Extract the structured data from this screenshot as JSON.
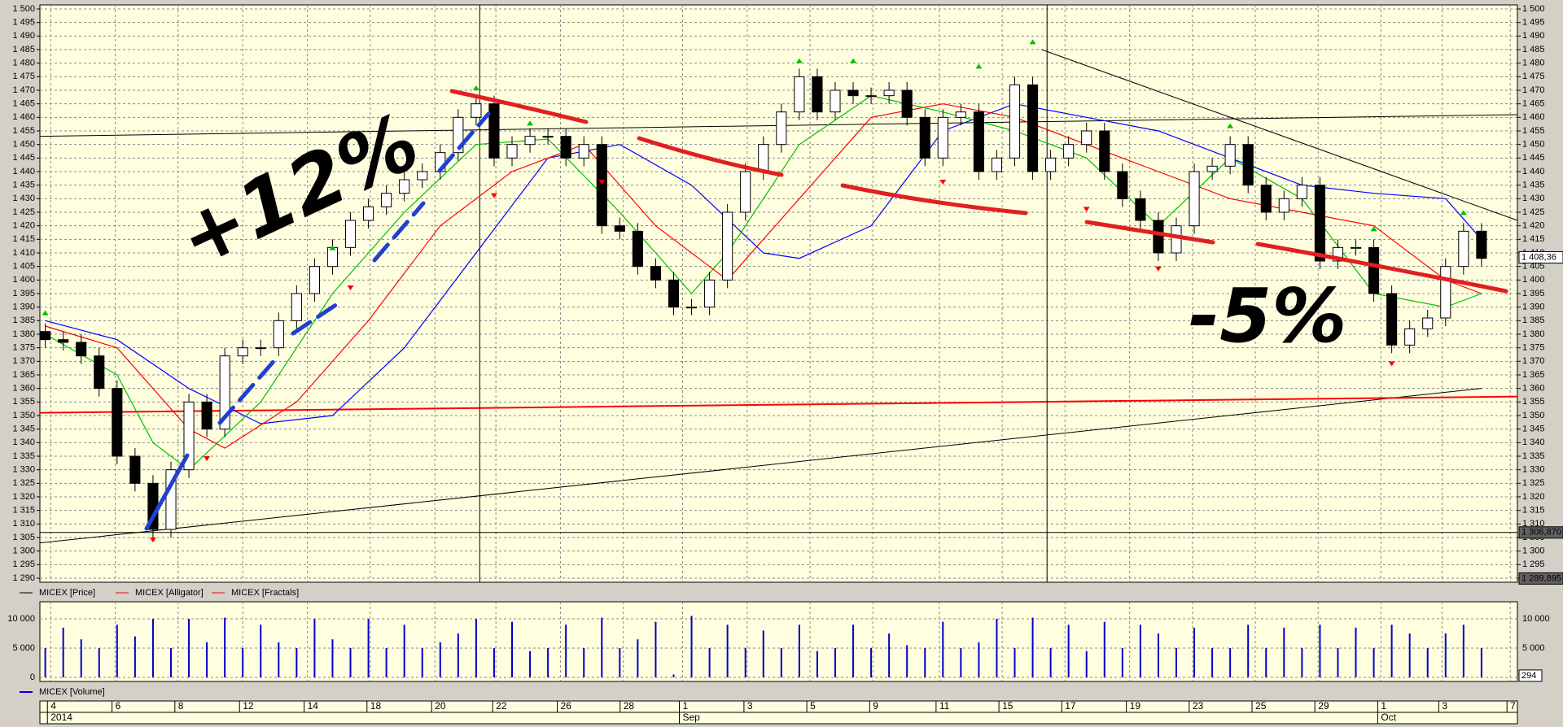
{
  "chart_data": {
    "type": "candlestick",
    "xlim": [
      -0.3,
      82
    ],
    "ylim": [
      1290,
      1500
    ],
    "yticks": [
      {
        "value": 1290,
        "label": "1 290"
      },
      {
        "value": 1295,
        "label": "1 295"
      },
      {
        "value": 1300,
        "label": "1 300"
      },
      {
        "value": 1305,
        "label": "1 305"
      },
      {
        "value": 1310,
        "label": "1 310"
      },
      {
        "value": 1315,
        "label": "1 315"
      },
      {
        "value": 1320,
        "label": "1 320"
      },
      {
        "value": 1325,
        "label": "1 325"
      },
      {
        "value": 1330,
        "label": "1 330"
      },
      {
        "value": 1335,
        "label": "1 335"
      },
      {
        "value": 1340,
        "label": "1 340"
      },
      {
        "value": 1345,
        "label": "1 345"
      },
      {
        "value": 1350,
        "label": "1 350"
      },
      {
        "value": 1355,
        "label": "1 355"
      },
      {
        "value": 1360,
        "label": "1 360"
      },
      {
        "value": 1365,
        "label": "1 365"
      },
      {
        "value": 1370,
        "label": "1 370"
      },
      {
        "value": 1375,
        "label": "1 375"
      },
      {
        "value": 1380,
        "label": "1 380"
      },
      {
        "value": 1385,
        "label": "1 385"
      },
      {
        "value": 1390,
        "label": "1 390"
      },
      {
        "value": 1395,
        "label": "1 395"
      },
      {
        "value": 1400,
        "label": "1 400"
      },
      {
        "value": 1405,
        "label": "1 405"
      },
      {
        "value": 1410,
        "label": "1 410"
      },
      {
        "value": 1415,
        "label": "1 415"
      },
      {
        "value": 1420,
        "label": "1 420"
      },
      {
        "value": 1425,
        "label": "1 425"
      },
      {
        "value": 1430,
        "label": "1 430"
      },
      {
        "value": 1435,
        "label": "1 435"
      },
      {
        "value": 1440,
        "label": "1 440"
      },
      {
        "value": 1445,
        "label": "1 445"
      },
      {
        "value": 1450,
        "label": "1 450"
      },
      {
        "value": 1455,
        "label": "1 455"
      },
      {
        "value": 1460,
        "label": "1 460"
      },
      {
        "value": 1465,
        "label": "1 465"
      },
      {
        "value": 1470,
        "label": "1 470"
      },
      {
        "value": 1475,
        "label": "1 475"
      },
      {
        "value": 1480,
        "label": "1 480"
      },
      {
        "value": 1485,
        "label": "1 485"
      },
      {
        "value": 1490,
        "label": "1 490"
      },
      {
        "value": 1495,
        "label": "1 495"
      },
      {
        "value": 1500,
        "label": "1 500"
      }
    ],
    "xticks": [
      {
        "value": 0.3,
        "label": "4"
      },
      {
        "value": 3.9,
        "label": "6"
      },
      {
        "value": 7.4,
        "label": "8"
      },
      {
        "value": 11,
        "label": "12"
      },
      {
        "value": 14.6,
        "label": "14"
      },
      {
        "value": 18.1,
        "label": "18"
      },
      {
        "value": 21.7,
        "label": "20"
      },
      {
        "value": 25.1,
        "label": "22"
      },
      {
        "value": 28.7,
        "label": "26"
      },
      {
        "value": 32.2,
        "label": "28"
      },
      {
        "value": 35.5,
        "label": "1"
      },
      {
        "value": 39.1,
        "label": "3"
      },
      {
        "value": 42.6,
        "label": "5"
      },
      {
        "value": 46.1,
        "label": "9"
      },
      {
        "value": 49.8,
        "label": "11"
      },
      {
        "value": 53.3,
        "label": "15"
      },
      {
        "value": 56.8,
        "label": "17"
      },
      {
        "value": 60.4,
        "label": "19"
      },
      {
        "value": 63.9,
        "label": "23"
      },
      {
        "value": 67.4,
        "label": "25"
      },
      {
        "value": 70.9,
        "label": "29"
      },
      {
        "value": 74.4,
        "label": "1"
      },
      {
        "value": 77.8,
        "label": "3"
      },
      {
        "value": 81.6,
        "label": "7"
      }
    ],
    "period_labels": [
      {
        "value": 0.3,
        "label": "2014"
      },
      {
        "value": 35.5,
        "label": "Sep"
      },
      {
        "value": 74.4,
        "label": "Oct"
      }
    ],
    "grid": true,
    "up_color": "#ffffff",
    "down_color": "#000000",
    "open": [
      1381,
      1378,
      1377,
      1372,
      1360,
      1335,
      1325,
      1308,
      1330,
      1355,
      1345,
      1372,
      1375,
      1375,
      1385,
      1395,
      1405,
      1412,
      1422,
      1427,
      1432,
      1437,
      1440,
      1447,
      1460,
      1465,
      1445,
      1450,
      1453,
      1453,
      1445,
      1450,
      1420,
      1418,
      1405,
      1400,
      1390,
      1390,
      1400,
      1425,
      1440,
      1450,
      1462,
      1475,
      1462,
      1470,
      1468,
      1468,
      1470,
      1460,
      1445,
      1460,
      1462,
      1440,
      1445,
      1472,
      1440,
      1445,
      1450,
      1455,
      1440,
      1430,
      1422,
      1410,
      1420,
      1440,
      1442,
      1450,
      1435,
      1425,
      1430,
      1435,
      1407,
      1412,
      1412,
      1395,
      1376,
      1382,
      1386,
      1405,
      1418
    ],
    "high": [
      1384,
      1381,
      1380,
      1375,
      1363,
      1338,
      1328,
      1333,
      1358,
      1358,
      1375,
      1378,
      1378,
      1388,
      1398,
      1408,
      1415,
      1425,
      1430,
      1435,
      1440,
      1443,
      1450,
      1463,
      1468,
      1468,
      1453,
      1456,
      1456,
      1456,
      1453,
      1453,
      1423,
      1421,
      1408,
      1403,
      1393,
      1403,
      1428,
      1443,
      1453,
      1465,
      1478,
      1478,
      1473,
      1473,
      1471,
      1473,
      1473,
      1463,
      1463,
      1465,
      1465,
      1448,
      1475,
      1475,
      1448,
      1453,
      1458,
      1458,
      1443,
      1433,
      1425,
      1423,
      1443,
      1445,
      1453,
      1453,
      1438,
      1433,
      1438,
      1438,
      1415,
      1415,
      1415,
      1398,
      1385,
      1389,
      1408,
      1421,
      1421
    ],
    "low": [
      1375,
      1374,
      1369,
      1357,
      1332,
      1322,
      1305,
      1305,
      1327,
      1342,
      1342,
      1369,
      1372,
      1372,
      1382,
      1392,
      1402,
      1409,
      1419,
      1424,
      1429,
      1434,
      1437,
      1444,
      1457,
      1442,
      1442,
      1447,
      1450,
      1442,
      1442,
      1417,
      1415,
      1402,
      1397,
      1387,
      1387,
      1387,
      1397,
      1422,
      1437,
      1447,
      1459,
      1459,
      1459,
      1465,
      1465,
      1465,
      1457,
      1442,
      1442,
      1457,
      1437,
      1437,
      1442,
      1437,
      1437,
      1442,
      1447,
      1437,
      1427,
      1419,
      1407,
      1407,
      1417,
      1437,
      1439,
      1432,
      1422,
      1422,
      1427,
      1404,
      1404,
      1409,
      1392,
      1373,
      1373,
      1379,
      1383,
      1402,
      1405
    ],
    "close": [
      1378,
      1377,
      1372,
      1360,
      1335,
      1325,
      1308,
      1330,
      1355,
      1345,
      1372,
      1375,
      1375,
      1385,
      1395,
      1405,
      1412,
      1422,
      1427,
      1432,
      1437,
      1440,
      1447,
      1460,
      1465,
      1445,
      1450,
      1453,
      1453,
      1445,
      1450,
      1420,
      1418,
      1405,
      1400,
      1390,
      1390,
      1400,
      1425,
      1440,
      1450,
      1462,
      1475,
      1462,
      1470,
      1468,
      1468,
      1470,
      1460,
      1445,
      1460,
      1462,
      1440,
      1445,
      1472,
      1440,
      1445,
      1450,
      1455,
      1440,
      1430,
      1422,
      1410,
      1420,
      1440,
      1442,
      1450,
      1435,
      1425,
      1430,
      1435,
      1407,
      1412,
      1412,
      1395,
      1376,
      1382,
      1386,
      1405,
      1418,
      1408
    ],
    "series": [
      {
        "name": "MICEX [Price]",
        "color": "#000000"
      },
      {
        "name": "MICEX [Alligator]",
        "color": "#ff0000"
      },
      {
        "name": "MICEX [Fractals]",
        "color": "#ff0000"
      }
    ],
    "indicator_lines": [
      {
        "color": "#0000ff",
        "x": [
          0,
          4,
          8,
          12,
          16,
          20,
          24,
          28,
          32,
          36,
          40,
          42,
          46,
          50,
          54,
          58,
          62,
          66,
          70,
          74,
          78,
          80
        ],
        "values": [
          1385,
          1378,
          1360,
          1347,
          1350,
          1375,
          1410,
          1445,
          1450,
          1435,
          1410,
          1408,
          1420,
          1455,
          1465,
          1460,
          1455,
          1445,
          1435,
          1432,
          1430,
          1415
        ]
      },
      {
        "color": "#ff0000",
        "x": [
          0,
          4,
          8,
          10,
          14,
          18,
          22,
          26,
          30,
          34,
          38,
          42,
          46,
          50,
          54,
          58,
          62,
          66,
          70,
          74,
          78,
          80
        ],
        "values": [
          1383,
          1375,
          1345,
          1338,
          1355,
          1385,
          1420,
          1440,
          1450,
          1420,
          1400,
          1430,
          1460,
          1465,
          1460,
          1450,
          1440,
          1430,
          1425,
          1420,
          1400,
          1395
        ]
      },
      {
        "color": "#00c000",
        "x": [
          0,
          4,
          6,
          8,
          12,
          16,
          20,
          24,
          28,
          32,
          36,
          38,
          42,
          46,
          50,
          54,
          58,
          62,
          66,
          70,
          74,
          78,
          80
        ],
        "values": [
          1380,
          1365,
          1340,
          1330,
          1355,
          1395,
          1425,
          1450,
          1452,
          1425,
          1395,
          1410,
          1450,
          1468,
          1462,
          1455,
          1445,
          1420,
          1445,
          1430,
          1395,
          1390,
          1395
        ]
      }
    ],
    "fractals_up": {
      "color": "#00c000",
      "x": [
        0,
        16,
        24,
        27,
        42,
        45,
        52,
        55,
        66,
        74,
        79
      ],
      "values": [
        1387,
        1411,
        1470,
        1457,
        1480,
        1480,
        1478,
        1487,
        1456,
        1418,
        1424
      ]
    },
    "fractals_down": {
      "color": "#ff0000",
      "x": [
        6,
        9,
        17,
        25,
        31,
        50,
        58,
        62,
        75
      ],
      "values": [
        1305,
        1335,
        1398,
        1432,
        1437,
        1437,
        1427,
        1405,
        1370
      ]
    },
    "trend_lines": [
      {
        "color": "#000000",
        "x": [
          -0.3,
          80
        ],
        "values": [
          1303,
          1360
        ]
      },
      {
        "color": "#ff0000",
        "x": [
          -0.3,
          82
        ],
        "values": [
          1351,
          1357
        ]
      },
      {
        "color": "#000000",
        "x": [
          -0.3,
          82
        ],
        "values": [
          1453,
          1461
        ]
      },
      {
        "color": "#000000",
        "x": [
          55.5,
          82
        ],
        "values": [
          1485,
          1422
        ]
      }
    ],
    "cursor_lines": [
      24.2,
      55.8
    ],
    "price_tags": [
      {
        "value": 1408.36,
        "label": "1 408,36"
      },
      {
        "value": 1306.87,
        "label": "1 306,870"
      },
      {
        "value": 1289.895,
        "label": "1 289,895"
      }
    ],
    "annotations": [
      {
        "text": "+12%",
        "color": "#2040d0"
      },
      {
        "text": "-5%",
        "color": "#e02020"
      }
    ],
    "volume": {
      "name": "MICEX [Volume]",
      "color": "#0000cc",
      "ylim": [
        0,
        12500
      ],
      "yticks": [
        {
          "value": 0,
          "label": "0"
        },
        {
          "value": 5000,
          "label": "5 000"
        },
        {
          "value": 10000,
          "label": "10 000"
        }
      ],
      "values": [
        5000,
        8500,
        6500,
        5000,
        9000,
        7000,
        10000,
        5000,
        10000,
        6000,
        10200,
        5000,
        9000,
        6000,
        5000,
        10000,
        6500,
        5000,
        10000,
        5000,
        9000,
        5000,
        6000,
        7500,
        10000,
        5000,
        9500,
        4500,
        5000,
        9000,
        5000,
        10200,
        5000,
        6500,
        9500,
        500,
        10500,
        5000,
        9000,
        5000,
        8000,
        5000,
        9000,
        4500,
        5000,
        9000,
        5000,
        7500,
        5500,
        5000,
        9500,
        5000,
        6000,
        10000,
        5000,
        10200,
        5000,
        9000,
        4500,
        9500,
        5000,
        9000,
        7500,
        5000,
        8500,
        5000,
        5000,
        9000,
        5000,
        8500,
        5000,
        9000,
        5000,
        8500,
        5000,
        9000,
        7500,
        5000,
        7500,
        9000,
        5000
      ],
      "tag": {
        "value": 294,
        "label": "294"
      }
    }
  }
}
